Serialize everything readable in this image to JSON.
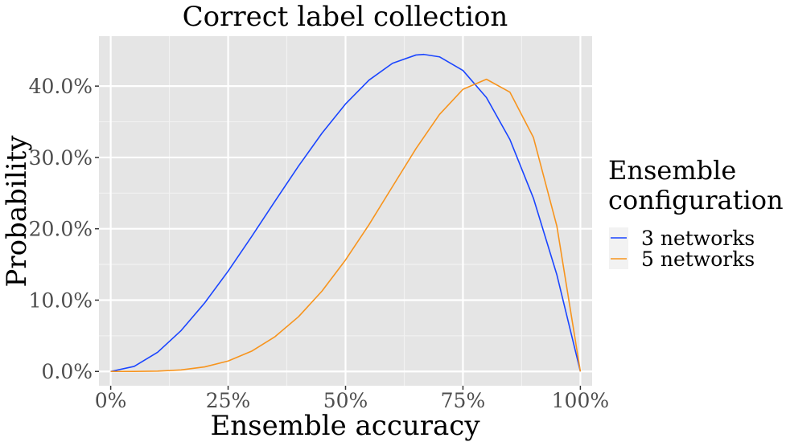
{
  "chart_data": {
    "type": "line",
    "title": "Correct label collection",
    "xlabel": "Ensemble accuracy",
    "ylabel": "Probability",
    "xlim": [
      -0.025,
      1.025
    ],
    "ylim": [
      -0.02,
      0.47
    ],
    "x_ticks": [
      0,
      0.25,
      0.5,
      0.75,
      1
    ],
    "x_tick_labels": [
      "0%",
      "25%",
      "50%",
      "75%",
      "100%"
    ],
    "y_ticks": [
      0,
      0.1,
      0.2,
      0.3,
      0.4
    ],
    "y_tick_labels": [
      "0.0%",
      "10.0%",
      "20.0%",
      "30.0%",
      "40.0%"
    ],
    "grid": true,
    "legend": {
      "title_lines": [
        "Ensemble",
        "configuration"
      ],
      "placement": "right"
    },
    "series": [
      {
        "name": "3 networks",
        "color": "#1a45ff",
        "x": [
          0,
          0.05,
          0.1,
          0.15,
          0.2,
          0.25,
          0.3,
          0.35,
          0.4,
          0.45,
          0.5,
          0.55,
          0.6,
          0.65,
          0.667,
          0.7,
          0.75,
          0.8,
          0.85,
          0.9,
          0.95,
          1
        ],
        "y": [
          0,
          0.0071,
          0.027,
          0.0574,
          0.096,
          0.1406,
          0.189,
          0.2389,
          0.288,
          0.3341,
          0.375,
          0.4084,
          0.432,
          0.4436,
          0.4444,
          0.441,
          0.4219,
          0.384,
          0.3251,
          0.243,
          0.1354,
          0
        ]
      },
      {
        "name": "5 networks",
        "color": "#f7941d",
        "x": [
          0,
          0.05,
          0.1,
          0.15,
          0.2,
          0.25,
          0.3,
          0.35,
          0.4,
          0.45,
          0.5,
          0.55,
          0.6,
          0.65,
          0.7,
          0.75,
          0.8,
          0.85,
          0.9,
          0.95,
          1
        ],
        "y": [
          0,
          3e-05,
          0.0005,
          0.0022,
          0.0064,
          0.0146,
          0.0284,
          0.0488,
          0.0768,
          0.1128,
          0.1563,
          0.2058,
          0.2592,
          0.3124,
          0.3602,
          0.3955,
          0.4096,
          0.3915,
          0.3281,
          0.2036,
          0
        ]
      }
    ]
  }
}
